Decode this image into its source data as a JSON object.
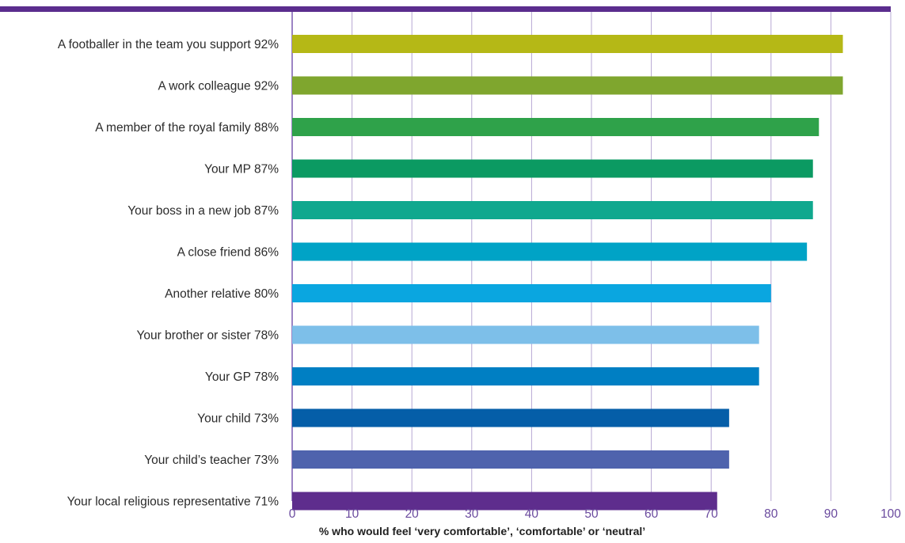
{
  "colors": {
    "accent": "#5b2d8e",
    "grid": "#b7a8d3",
    "axis": "#7b5cb0",
    "tick_text": "#6a4a9e"
  },
  "chart_data": {
    "type": "bar",
    "orientation": "horizontal",
    "title": "",
    "xlabel": "% who would feel ‘very comfortable’, ‘comfortable’ or ‘neutral’",
    "ylabel": "",
    "xlim": [
      0,
      100
    ],
    "xticks": [
      0,
      10,
      20,
      30,
      40,
      50,
      60,
      70,
      80,
      90,
      100
    ],
    "grid": true,
    "categories": [
      "A footballer in the team you support 92%",
      "A work colleague 92%",
      "A member of the royal family 88%",
      "Your MP 87%",
      "Your boss in a new job 87%",
      "A close friend 86%",
      "Another relative 80%",
      "Your brother or sister 78%",
      "Your GP 78%",
      "Your child 73%",
      "Your child’s teacher 73%",
      "Your local religious representative 71%"
    ],
    "values": [
      92,
      92,
      88,
      87,
      87,
      86,
      80,
      78,
      78,
      73,
      73,
      71
    ],
    "bar_colors": [
      "#b5b816",
      "#7fa62e",
      "#2fa24a",
      "#0b9a62",
      "#10a88e",
      "#00a3c6",
      "#0aa6e0",
      "#7dbfe9",
      "#007fc3",
      "#055ea8",
      "#4f63ad",
      "#5e2d8d"
    ]
  }
}
